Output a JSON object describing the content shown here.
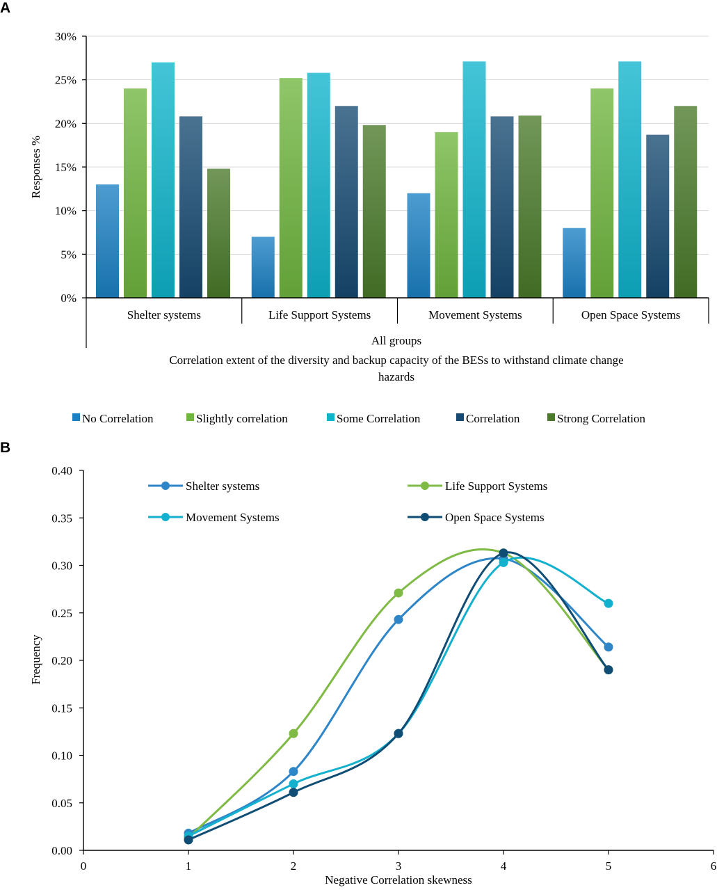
{
  "colors": {
    "no_correlation": "#1b80c4",
    "slightly_correlation": "#6fb63f",
    "some_correlation": "#0fb4cc",
    "correlation": "#174a72",
    "strong_correlation": "#4a7a2a",
    "shelter_line": "#2e86c8",
    "life_line": "#7fba45",
    "movement_line": "#14b1cf",
    "open_line": "#0f4d75",
    "axis": "#000000",
    "grid": "#d9d9d9"
  },
  "chart_data": [
    {
      "panel_label": "A",
      "type": "bar",
      "categories": [
        "Shelter systems",
        "Life Support Systems",
        "Movement Systems",
        "Open Space Systems"
      ],
      "group_label": "All groups",
      "xlabel": "Correlation extent of the diversity and backup capacity of the BESs to withstand climate change hazards",
      "xlabel_lines": [
        "Correlation extent of the diversity and backup capacity of the BESs to withstand climate change",
        "hazards"
      ],
      "ylabel": "Responses %",
      "ylim": [
        0,
        30
      ],
      "yticks": [
        0,
        5,
        10,
        15,
        20,
        25,
        30
      ],
      "ytick_labels": [
        "0%",
        "5%",
        "10%",
        "15%",
        "20%",
        "25%",
        "30%"
      ],
      "grid": true,
      "legend_position": "bottom",
      "series": [
        {
          "name": "No Correlation",
          "values": [
            13,
            7,
            12,
            8
          ]
        },
        {
          "name": "Slightly correlation",
          "values": [
            24,
            25.2,
            19,
            24
          ]
        },
        {
          "name": "Some Correlation",
          "values": [
            27,
            25.8,
            27.1,
            27.1
          ]
        },
        {
          "name": "Correlation",
          "values": [
            20.8,
            22,
            20.8,
            18.7
          ]
        },
        {
          "name": "Strong Correlation",
          "values": [
            14.8,
            19.8,
            20.9,
            22
          ]
        }
      ]
    },
    {
      "panel_label": "B",
      "type": "line",
      "xlabel": "Negative Correlation skewness",
      "ylabel": "Frequency",
      "xlim": [
        0,
        6
      ],
      "ylim": [
        0,
        0.4
      ],
      "xticks": [
        0,
        1,
        2,
        3,
        4,
        5,
        6
      ],
      "xtick_labels": [
        "0",
        "1",
        "2",
        "3",
        "4",
        "5",
        "6"
      ],
      "yticks": [
        0,
        0.05,
        0.1,
        0.15,
        0.2,
        0.25,
        0.3,
        0.35,
        0.4
      ],
      "ytick_labels": [
        "0.00",
        "0.05",
        "0.10",
        "0.15",
        "0.20",
        "0.25",
        "0.30",
        "0.35",
        "0.40"
      ],
      "grid": false,
      "legend_position": "top-left",
      "x": [
        1,
        2,
        3,
        4,
        5
      ],
      "series": [
        {
          "name": "Shelter systems",
          "values": [
            0.018,
            0.083,
            0.243,
            0.307,
            0.214
          ]
        },
        {
          "name": "Life Support Systems",
          "values": [
            0.013,
            0.123,
            0.271,
            0.313,
            0.19
          ]
        },
        {
          "name": "Movement Systems",
          "values": [
            0.015,
            0.07,
            0.123,
            0.303,
            0.26
          ]
        },
        {
          "name": "Open Space Systems",
          "values": [
            0.011,
            0.061,
            0.123,
            0.313,
            0.19
          ]
        }
      ]
    }
  ]
}
